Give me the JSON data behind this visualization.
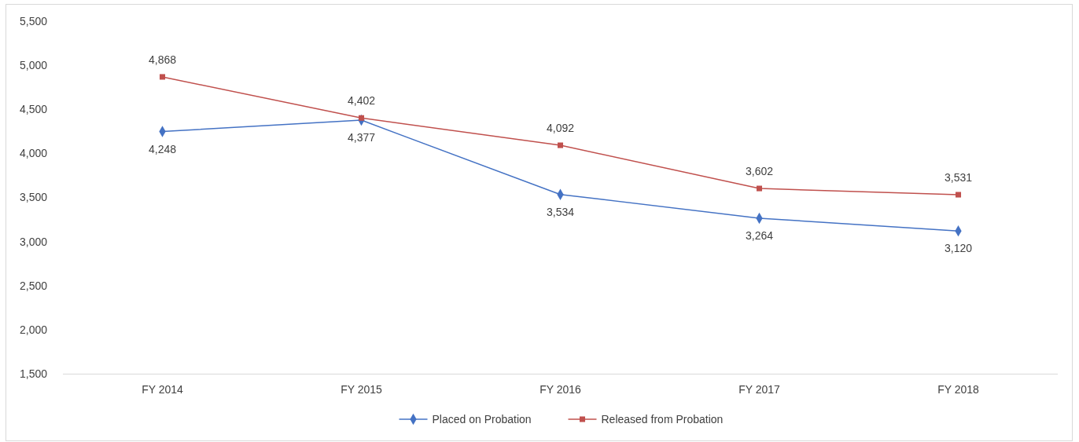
{
  "chart_data": {
    "type": "line",
    "categories": [
      "FY 2014",
      "FY 2015",
      "FY 2016",
      "FY 2017",
      "FY 2018"
    ],
    "series": [
      {
        "name": "Placed on Probation",
        "color": "#4472c4",
        "marker": "diamond",
        "values": [
          4248,
          4377,
          3534,
          3264,
          3120
        ],
        "value_labels": [
          "4,248",
          "4,377",
          "3,534",
          "3,264",
          "3,120"
        ]
      },
      {
        "name": "Released from Probation",
        "color": "#c0504d",
        "marker": "square",
        "values": [
          4868,
          4402,
          4092,
          3602,
          3531
        ],
        "value_labels": [
          "4,868",
          "4,402",
          "4,092",
          "3,602",
          "3,531"
        ]
      }
    ],
    "ylim": [
      1500,
      5500
    ],
    "yticks": [
      {
        "value": 1500,
        "label": "1,500"
      },
      {
        "value": 2000,
        "label": "2,000"
      },
      {
        "value": 2500,
        "label": "2,500"
      },
      {
        "value": 3000,
        "label": "3,000"
      },
      {
        "value": 3500,
        "label": "3,500"
      },
      {
        "value": 4000,
        "label": "4,000"
      },
      {
        "value": 4500,
        "label": "4,500"
      },
      {
        "value": 5000,
        "label": "5,000"
      },
      {
        "value": 5500,
        "label": "5,500"
      }
    ],
    "legend": "bottom",
    "grid": false
  }
}
